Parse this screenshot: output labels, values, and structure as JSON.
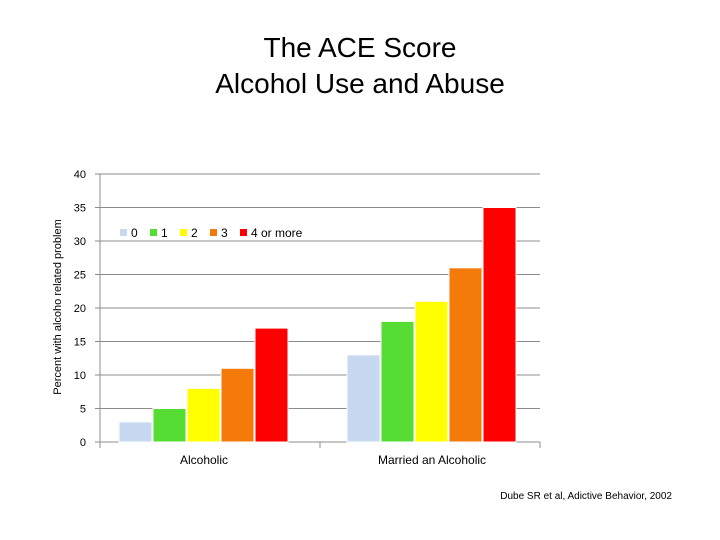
{
  "chart_data": {
    "type": "bar",
    "title_lines": [
      "The ACE Score",
      "Alcohol Use and Abuse"
    ],
    "ylabel": "Percent with alcoho related problem",
    "xlabel": "",
    "ylim": [
      0,
      40
    ],
    "yticks": [
      0,
      5,
      10,
      15,
      20,
      25,
      30,
      35,
      40
    ],
    "grid": true,
    "legend_position": "top-left",
    "categories": [
      "Alcoholic",
      "Married an Alcoholic"
    ],
    "series": [
      {
        "name": "0",
        "color": "#c6d9f1",
        "values": [
          3,
          13
        ]
      },
      {
        "name": "1",
        "color": "#55dd33",
        "values": [
          5,
          18
        ]
      },
      {
        "name": "2",
        "color": "#ffff00",
        "values": [
          8,
          21
        ]
      },
      {
        "name": "3",
        "color": "#f47a0a",
        "values": [
          11,
          26
        ]
      },
      {
        "name": "4 or more",
        "color": "#ff0000",
        "values": [
          17,
          35
        ]
      }
    ]
  },
  "source_note": "Dube SR et al, Adictive Behavior, 2002"
}
